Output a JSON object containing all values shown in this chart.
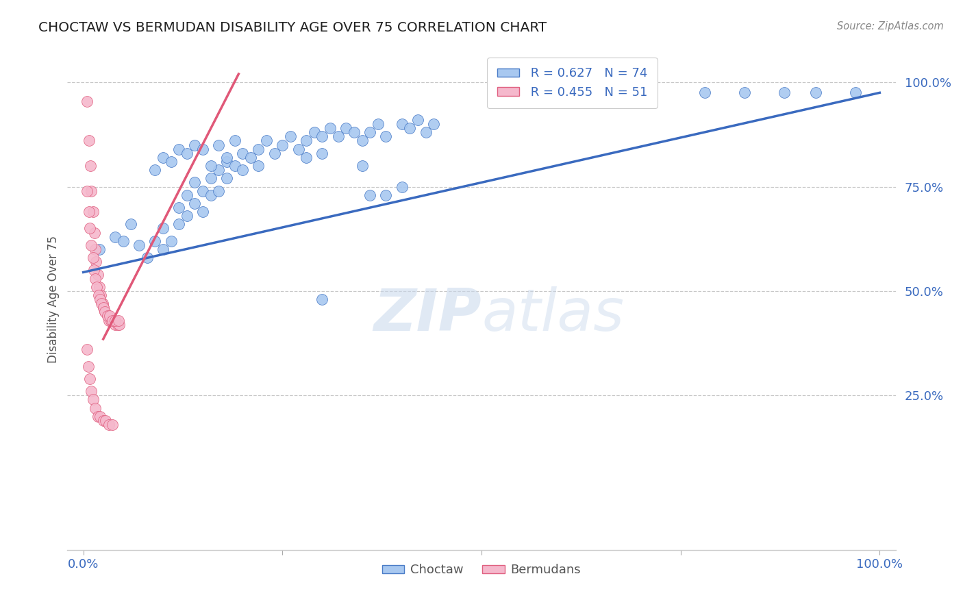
{
  "title": "CHOCTAW VS BERMUDAN DISABILITY AGE OVER 75 CORRELATION CHART",
  "source": "Source: ZipAtlas.com",
  "ylabel": "Disability Age Over 75",
  "xlim": [
    -0.02,
    1.02
  ],
  "ylim": [
    -0.12,
    1.08
  ],
  "ytick_positions": [
    0.25,
    0.5,
    0.75,
    1.0
  ],
  "ytick_labels": [
    "25.0%",
    "50.0%",
    "75.0%",
    "100.0%"
  ],
  "xtick_positions": [
    0.0,
    0.25,
    0.5,
    0.75,
    1.0
  ],
  "xtick_labels": [
    "0.0%",
    "",
    "",
    "",
    "100.0%"
  ],
  "grid_color": "#c8c8c8",
  "background_color": "#ffffff",
  "choctaw_color": "#a8c8f0",
  "choctaw_edge_color": "#4a7cc7",
  "bermuda_color": "#f5b8cc",
  "bermuda_edge_color": "#e06080",
  "choctaw_line_color": "#3a6abf",
  "bermuda_line_color": "#e05878",
  "legend_R1": "0.627",
  "legend_N1": "74",
  "legend_R2": "0.455",
  "legend_N2": "51",
  "choctaw_line_x": [
    0.0,
    1.0
  ],
  "choctaw_line_y": [
    0.545,
    0.975
  ],
  "bermuda_line_x": [
    0.025,
    0.195
  ],
  "bermuda_line_y": [
    0.385,
    1.02
  ],
  "choctaw_x": [
    0.02,
    0.04,
    0.05,
    0.06,
    0.07,
    0.08,
    0.09,
    0.1,
    0.1,
    0.11,
    0.12,
    0.12,
    0.13,
    0.13,
    0.14,
    0.14,
    0.15,
    0.15,
    0.16,
    0.16,
    0.17,
    0.17,
    0.18,
    0.18,
    0.19,
    0.2,
    0.2,
    0.21,
    0.22,
    0.22,
    0.23,
    0.24,
    0.25,
    0.26,
    0.27,
    0.28,
    0.28,
    0.29,
    0.3,
    0.3,
    0.31,
    0.32,
    0.33,
    0.34,
    0.35,
    0.36,
    0.37,
    0.38,
    0.4,
    0.41,
    0.42,
    0.43,
    0.44,
    0.09,
    0.1,
    0.11,
    0.12,
    0.13,
    0.14,
    0.15,
    0.16,
    0.17,
    0.18,
    0.19,
    0.35,
    0.38,
    0.4,
    0.78,
    0.83,
    0.88,
    0.92,
    0.97,
    0.3,
    0.36
  ],
  "choctaw_y": [
    0.6,
    0.63,
    0.62,
    0.66,
    0.61,
    0.58,
    0.62,
    0.6,
    0.65,
    0.62,
    0.7,
    0.66,
    0.73,
    0.68,
    0.76,
    0.71,
    0.74,
    0.69,
    0.77,
    0.73,
    0.79,
    0.74,
    0.81,
    0.77,
    0.8,
    0.83,
    0.79,
    0.82,
    0.84,
    0.8,
    0.86,
    0.83,
    0.85,
    0.87,
    0.84,
    0.86,
    0.82,
    0.88,
    0.87,
    0.83,
    0.89,
    0.87,
    0.89,
    0.88,
    0.86,
    0.88,
    0.9,
    0.87,
    0.9,
    0.89,
    0.91,
    0.88,
    0.9,
    0.79,
    0.82,
    0.81,
    0.84,
    0.83,
    0.85,
    0.84,
    0.8,
    0.85,
    0.82,
    0.86,
    0.8,
    0.73,
    0.75,
    0.975,
    0.975,
    0.975,
    0.975,
    0.975,
    0.48,
    0.73
  ],
  "bermuda_x": [
    0.005,
    0.007,
    0.009,
    0.01,
    0.012,
    0.014,
    0.015,
    0.016,
    0.018,
    0.02,
    0.022,
    0.024,
    0.025,
    0.027,
    0.03,
    0.032,
    0.035,
    0.037,
    0.04,
    0.043,
    0.045,
    0.005,
    0.007,
    0.008,
    0.01,
    0.012,
    0.013,
    0.015,
    0.017,
    0.019,
    0.021,
    0.023,
    0.025,
    0.027,
    0.03,
    0.033,
    0.036,
    0.04,
    0.044,
    0.005,
    0.006,
    0.008,
    0.01,
    0.012,
    0.015,
    0.018,
    0.021,
    0.025,
    0.028,
    0.032,
    0.036
  ],
  "bermuda_y": [
    0.955,
    0.86,
    0.8,
    0.74,
    0.69,
    0.64,
    0.6,
    0.57,
    0.54,
    0.51,
    0.49,
    0.47,
    0.46,
    0.45,
    0.44,
    0.43,
    0.43,
    0.43,
    0.42,
    0.42,
    0.42,
    0.74,
    0.69,
    0.65,
    0.61,
    0.58,
    0.55,
    0.53,
    0.51,
    0.49,
    0.48,
    0.47,
    0.46,
    0.45,
    0.44,
    0.44,
    0.43,
    0.43,
    0.43,
    0.36,
    0.32,
    0.29,
    0.26,
    0.24,
    0.22,
    0.2,
    0.2,
    0.19,
    0.19,
    0.18,
    0.18
  ]
}
